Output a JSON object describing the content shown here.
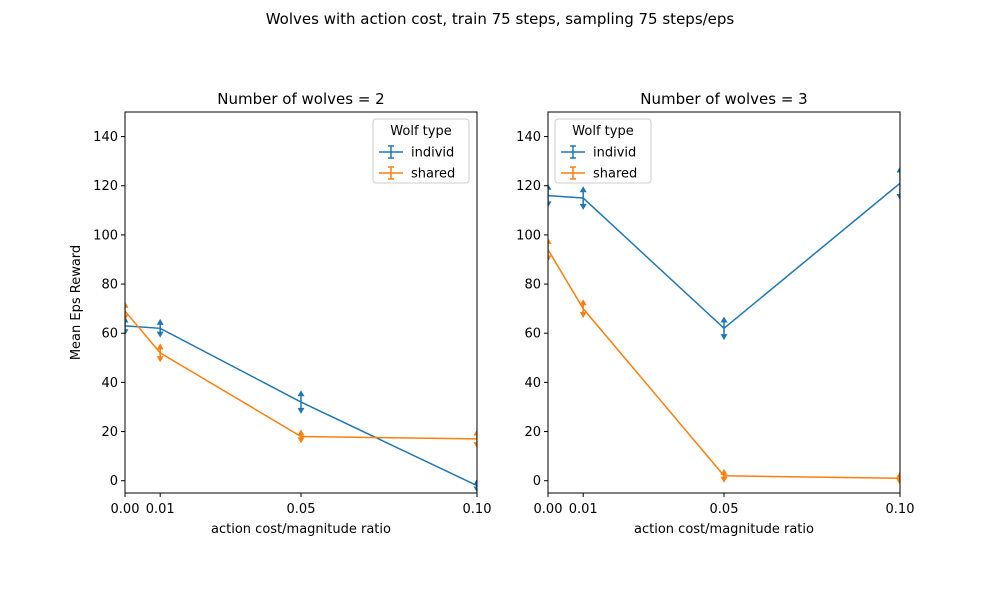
{
  "figure": {
    "suptitle": "Wolves with action cost, train 75 steps, sampling 75 steps/eps"
  },
  "chart_data": [
    {
      "type": "line",
      "title": "Number of wolves = 2",
      "xlabel": "action cost/magnitude ratio",
      "ylabel": "Mean Eps Reward",
      "xlim": [
        0.0,
        0.1
      ],
      "ylim": [
        -5,
        150
      ],
      "xticks": [
        0.0,
        0.01,
        0.05,
        0.1
      ],
      "xticklabels": [
        "0.00",
        "0.01",
        "0.05",
        "0.10"
      ],
      "yticks": [
        0,
        20,
        40,
        60,
        80,
        100,
        120,
        140
      ],
      "yticklabels": [
        "0",
        "20",
        "40",
        "60",
        "80",
        "100",
        "120",
        "140"
      ],
      "legend": {
        "title": "Wolf type",
        "placement": "upper right"
      },
      "series": [
        {
          "name": "individ",
          "color": "#1f77b4",
          "x": [
            0.0,
            0.01,
            0.05,
            0.1
          ],
          "y": [
            63,
            62,
            32,
            -2
          ],
          "err": [
            3,
            3,
            4,
            2
          ]
        },
        {
          "name": "shared",
          "color": "#ff7f0e",
          "x": [
            0.0,
            0.01,
            0.05,
            0.1
          ],
          "y": [
            69,
            52,
            18,
            17
          ],
          "err": [
            3,
            3,
            2,
            3
          ]
        }
      ]
    },
    {
      "type": "line",
      "title": "Number of wolves = 3",
      "xlabel": "action cost/magnitude ratio",
      "ylabel": "",
      "xlim": [
        0.0,
        0.1
      ],
      "ylim": [
        -5,
        150
      ],
      "xticks": [
        0.0,
        0.01,
        0.05,
        0.1
      ],
      "xticklabels": [
        "0.00",
        "0.01",
        "0.05",
        "0.10"
      ],
      "yticks": [
        0,
        20,
        40,
        60,
        80,
        100,
        120,
        140
      ],
      "yticklabels": [
        "0",
        "20",
        "40",
        "60",
        "80",
        "100",
        "120",
        "140"
      ],
      "legend": {
        "title": "Wolf type",
        "placement": "upper left"
      },
      "series": [
        {
          "name": "individ",
          "color": "#1f77b4",
          "x": [
            0.0,
            0.01,
            0.05,
            0.1
          ],
          "y": [
            116,
            115,
            62,
            121
          ],
          "err": [
            4,
            4,
            4,
            6
          ]
        },
        {
          "name": "shared",
          "color": "#ff7f0e",
          "x": [
            0.0,
            0.01,
            0.05,
            0.1
          ],
          "y": [
            94,
            70,
            2,
            1
          ],
          "err": [
            4,
            3,
            2,
            2
          ]
        }
      ]
    }
  ]
}
